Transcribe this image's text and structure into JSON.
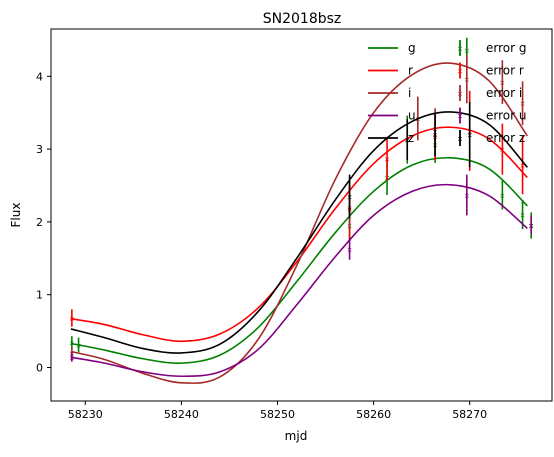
{
  "chart_data": {
    "type": "line",
    "title": "SN2018bsz",
    "xlabel": "mjd",
    "ylabel": "Flux",
    "xlim": [
      58226.2,
      58777.8
    ],
    "ylim": [
      -0.45,
      4.72
    ],
    "x_ticks": [
      58230,
      58240,
      58250,
      58260,
      58270
    ],
    "x_tick_labels": [
      "58230",
      "58240",
      "58250",
      "58260",
      "58270"
    ],
    "y_ticks": [
      0,
      1,
      2,
      3,
      4
    ],
    "y_tick_labels": [
      "0",
      "1",
      "2",
      "3",
      "4"
    ],
    "grid": false,
    "legend_position": "top-right",
    "series": [
      {
        "name": "g",
        "error_name": "error g",
        "color": "#008000",
        "curve_x": [
          58228.5,
          58232,
          58236,
          58240,
          58244,
          58248,
          58252,
          58256,
          58260,
          58264,
          58268,
          58272,
          58276
        ],
        "curve_y": [
          0.33,
          0.24,
          0.12,
          0.06,
          0.17,
          0.55,
          1.18,
          1.85,
          2.42,
          2.78,
          2.88,
          2.73,
          2.22
        ],
        "points": [
          [
            58228.6,
            0.34,
            0.09
          ],
          [
            58229.3,
            0.31,
            0.1
          ],
          [
            58257.5,
            1.95,
            0.22
          ],
          [
            58261.4,
            2.62,
            0.25
          ],
          [
            58263.5,
            3.13,
            0.33
          ],
          [
            58266.4,
            3.06,
            0.25
          ],
          [
            58269.7,
            4.36,
            0.17
          ],
          [
            58273.4,
            2.37,
            0.2
          ],
          [
            58275.5,
            2.1,
            0.2
          ],
          [
            58276.4,
            1.95,
            0.18
          ]
        ]
      },
      {
        "name": "r",
        "error_name": "error r",
        "color": "#ff0000",
        "curve_x": [
          58228.5,
          58232,
          58236,
          58240,
          58244,
          58248,
          58252,
          58256,
          58260,
          58264,
          58268,
          58272,
          58276
        ],
        "curve_y": [
          0.67,
          0.59,
          0.45,
          0.36,
          0.46,
          0.82,
          1.45,
          2.18,
          2.8,
          3.18,
          3.3,
          3.14,
          2.61
        ],
        "points": [
          [
            58228.6,
            0.68,
            0.12
          ],
          [
            58257.5,
            2.18,
            0.4
          ],
          [
            58261.4,
            2.87,
            0.3
          ],
          [
            58266.4,
            3.17,
            0.32
          ],
          [
            58270.0,
            3.25,
            0.55
          ],
          [
            58273.4,
            3.0,
            0.35
          ],
          [
            58275.5,
            2.78,
            0.4
          ]
        ]
      },
      {
        "name": "i",
        "error_name": "error i",
        "color": "#a52a2a",
        "curve_x": [
          58228.5,
          58232,
          58236,
          58240,
          58244,
          58248,
          58252,
          58256,
          58260,
          58264,
          58268,
          58272,
          58276
        ],
        "curve_y": [
          0.22,
          0.11,
          -0.08,
          -0.21,
          -0.13,
          0.39,
          1.4,
          2.58,
          3.5,
          4.02,
          4.18,
          3.94,
          3.18
        ],
        "points": [
          [
            58228.6,
            0.2,
            0.08
          ],
          [
            58257.5,
            2.2,
            0.3
          ],
          [
            58264.6,
            3.42,
            0.3
          ],
          [
            58266.4,
            3.28,
            0.28
          ],
          [
            58269.7,
            3.96,
            0.33
          ],
          [
            58273.4,
            3.92,
            0.3
          ],
          [
            58275.5,
            3.63,
            0.3
          ]
        ]
      },
      {
        "name": "u",
        "error_name": "error u",
        "color": "#800080",
        "curve_x": [
          58228.5,
          58232,
          58236,
          58240,
          58244,
          58248,
          58252,
          58256,
          58260,
          58264,
          58268,
          58272,
          58276
        ],
        "curve_y": [
          0.14,
          0.06,
          -0.06,
          -0.12,
          -0.06,
          0.25,
          0.86,
          1.52,
          2.09,
          2.42,
          2.51,
          2.36,
          1.91
        ],
        "points": [
          [
            58228.6,
            0.14,
            0.06
          ],
          [
            58257.5,
            1.63,
            0.15
          ],
          [
            58269.7,
            2.37,
            0.28
          ],
          [
            58276.4,
            1.96,
            0.12
          ]
        ]
      },
      {
        "name": "z",
        "error_name": "error z",
        "color": "#000000",
        "curve_x": [
          58228.5,
          58232,
          58236,
          58240,
          58244,
          58248,
          58252,
          58256,
          58260,
          58264,
          58268,
          58272,
          58276
        ],
        "curve_y": [
          0.53,
          0.41,
          0.26,
          0.2,
          0.32,
          0.77,
          1.5,
          2.3,
          2.98,
          3.38,
          3.51,
          3.34,
          2.75
        ],
        "points": [
          [
            58257.5,
            2.35,
            0.3
          ],
          [
            58263.5,
            3.13,
            0.28
          ],
          [
            58266.4,
            3.2,
            0.3
          ],
          [
            58270.0,
            3.2,
            0.45
          ]
        ]
      }
    ]
  }
}
